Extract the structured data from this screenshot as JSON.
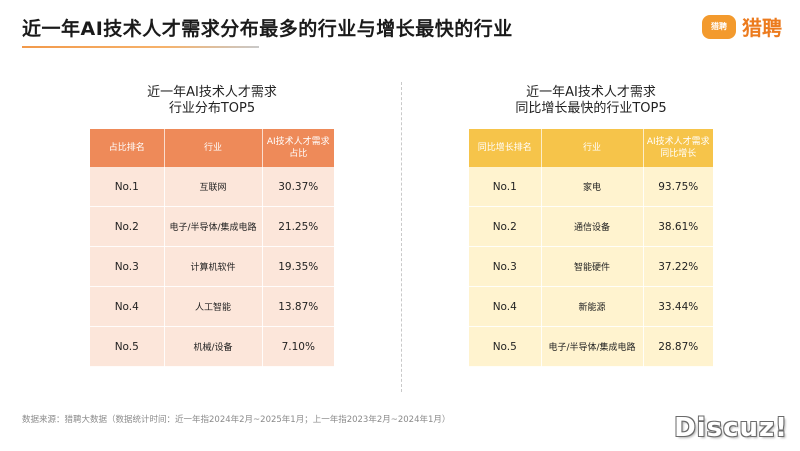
{
  "page": {
    "title": "近一年AI技术人才需求分布最多的行业与增长最快的行业",
    "logo_mark": "猎聘",
    "logo_text": "猎聘"
  },
  "left_panel": {
    "title_line1": "近一年AI技术人才需求",
    "title_line2": "行业分布TOP5",
    "headers": [
      "占比排名",
      "行业",
      "AI技术人才需求占比"
    ],
    "rows": [
      [
        "No.1",
        "互联网",
        "30.37%"
      ],
      [
        "No.2",
        "电子/半导体/集成电路",
        "21.25%"
      ],
      [
        "No.3",
        "计算机软件",
        "19.35%"
      ],
      [
        "No.4",
        "人工智能",
        "13.87%"
      ],
      [
        "No.5",
        "机械/设备",
        "7.10%"
      ]
    ]
  },
  "right_panel": {
    "title_line1": "近一年AI技术人才需求",
    "title_line2": "同比增长最快的行业TOP5",
    "headers": [
      "同比增长排名",
      "行业",
      "AI技术人才需求同比增长"
    ],
    "rows": [
      [
        "No.1",
        "家电",
        "93.75%"
      ],
      [
        "No.2",
        "通信设备",
        "38.61%"
      ],
      [
        "No.3",
        "智能硬件",
        "37.22%"
      ],
      [
        "No.4",
        "新能源",
        "33.44%"
      ],
      [
        "No.5",
        "电子/半导体/集成电路",
        "28.87%"
      ]
    ]
  },
  "footnote": "数据来源：猎聘大数据（数据统计时间：近一年指2024年2月~2025年1月；上一年指2023年2月~2024年1月）",
  "watermark": "Discuz!",
  "colors": {
    "left_header": "#ee8a59",
    "left_cell": "#fce6da",
    "right_header": "#f6c44a",
    "right_cell": "#fff3cf",
    "brand": "#f39a2d"
  }
}
